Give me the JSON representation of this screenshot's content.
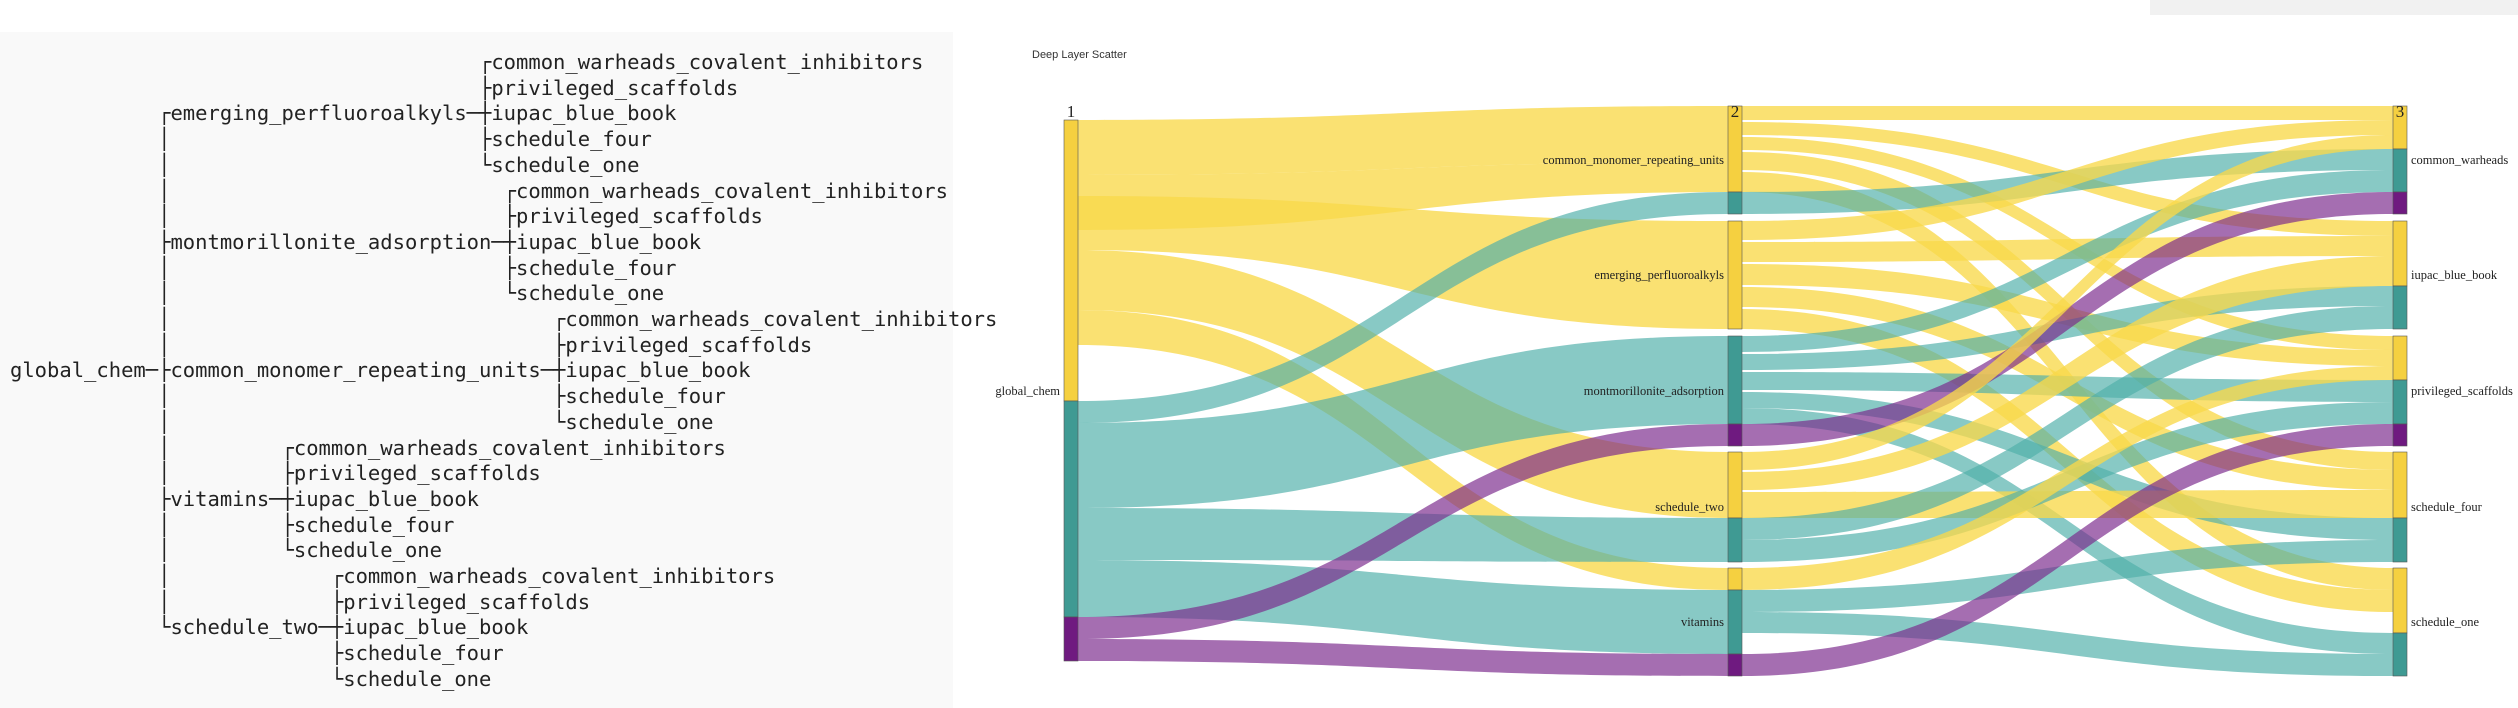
{
  "tree": {
    "root": "global_chem",
    "branches": [
      {
        "name": "emerging_perfluoroalkyls",
        "children": [
          "common_warheads_covalent_inhibitors",
          "privileged_scaffolds",
          "iupac_blue_book",
          "schedule_four",
          "schedule_one"
        ]
      },
      {
        "name": "montmorillonite_adsorption",
        "children": [
          "common_warheads_covalent_inhibitors",
          "privileged_scaffolds",
          "iupac_blue_book",
          "schedule_four",
          "schedule_one"
        ]
      },
      {
        "name": "common_monomer_repeating_units",
        "children": [
          "common_warheads_covalent_inhibitors",
          "privileged_scaffolds",
          "iupac_blue_book",
          "schedule_four",
          "schedule_one"
        ]
      },
      {
        "name": "vitamins",
        "children": [
          "common_warheads_covalent_inhibitors",
          "privileged_scaffolds",
          "iupac_blue_book",
          "schedule_four",
          "schedule_one"
        ]
      },
      {
        "name": "schedule_two",
        "children": [
          "common_warheads_covalent_inhibitors",
          "privileged_scaffolds",
          "iupac_blue_book",
          "schedule_four",
          "schedule_one"
        ]
      }
    ]
  },
  "sankey": {
    "title": "Deep Layer Scatter",
    "stages": [
      "1",
      "2",
      "3"
    ],
    "nodes": {
      "stage1": [
        "global_chem"
      ],
      "stage2": [
        "common_monomer_repeating_units",
        "emerging_perfluoroalkyls",
        "montmorillonite_adsorption",
        "schedule_two",
        "vitamins"
      ],
      "stage3": [
        "common_warheads",
        "iupac_blue_book",
        "privileged_scaffolds",
        "schedule_four",
        "schedule_one"
      ]
    },
    "colors": {
      "yellow": "#f9d94a",
      "teal": "#4fb0a9",
      "purple": "#7b2a8c",
      "yellow_node": "#f5d040",
      "teal_node": "#3f9a93",
      "purple_node": "#6f1a80"
    },
    "flows_1_to_2": [
      {
        "target": "common_monomer_repeating_units",
        "yellow": 2,
        "teal": 0.5,
        "purple": 0
      },
      {
        "target": "emerging_perfluoroalkyls",
        "yellow": 2,
        "teal": 0,
        "purple": 0
      },
      {
        "target": "montmorillonite_adsorption",
        "yellow": 0,
        "teal": 2,
        "purple": 0.5
      },
      {
        "target": "schedule_two",
        "yellow": 1,
        "teal": 1,
        "purple": 0
      },
      {
        "target": "vitamins",
        "yellow": 0.5,
        "teal": 1,
        "purple": 0.5
      }
    ]
  }
}
